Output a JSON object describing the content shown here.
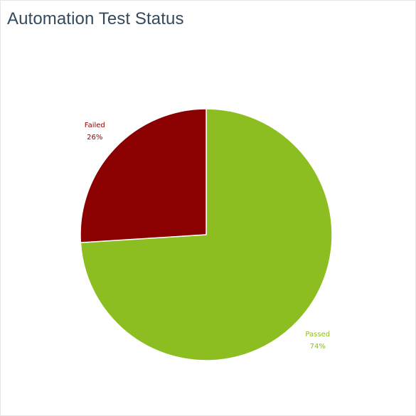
{
  "panel": {
    "title": "Automation Test Status"
  },
  "chart_data": {
    "type": "pie",
    "title": "Automation Test Status",
    "start_angle_deg": 0,
    "direction": "clockwise",
    "slices": [
      {
        "label": "Passed",
        "value": 74,
        "percent_label": "74%",
        "color": "#8cbe22"
      },
      {
        "label": "Failed",
        "value": 26,
        "percent_label": "26%",
        "color": "#8b0000"
      }
    ],
    "slice_border_color": "#ffffff",
    "legend": "none"
  }
}
